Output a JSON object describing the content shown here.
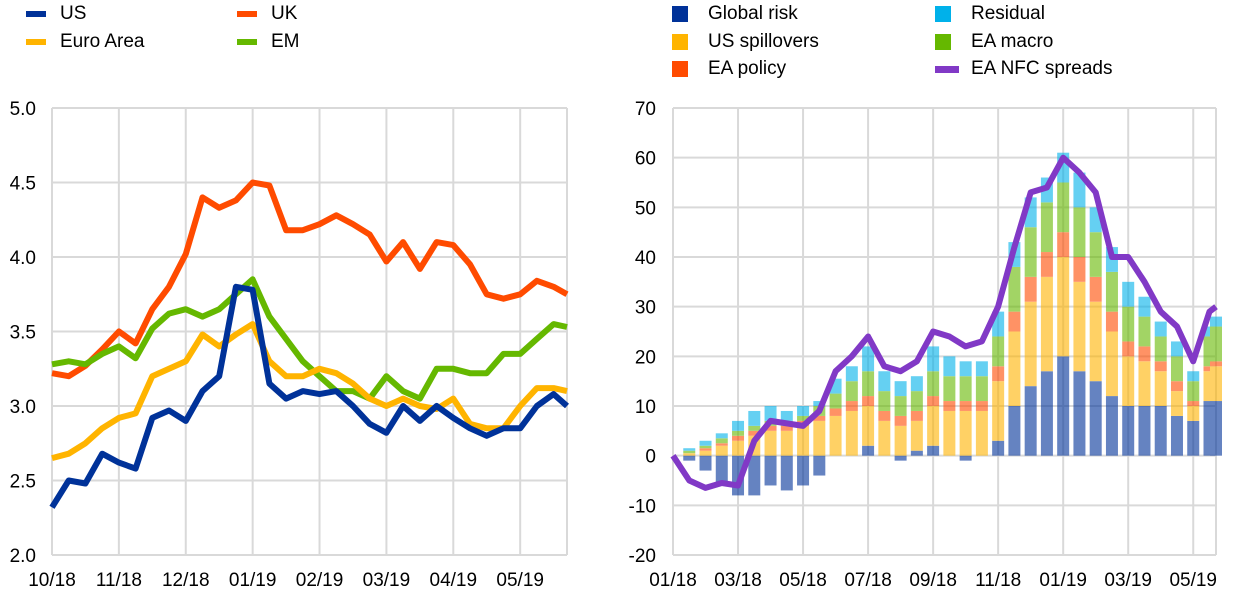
{
  "chart_data": [
    {
      "type": "line",
      "title": "",
      "xlabel": "",
      "ylabel": "",
      "ylim": [
        2.0,
        5.0
      ],
      "yticks": [
        "2.0",
        "2.5",
        "3.0",
        "3.5",
        "4.0",
        "4.5",
        "5.0"
      ],
      "xticks": [
        "10/18",
        "11/18",
        "12/18",
        "01/19",
        "02/19",
        "03/19",
        "04/19",
        "05/19"
      ],
      "xlim_months": [
        0,
        7.7
      ],
      "grid": true,
      "legend_placement": "top",
      "x": [
        0,
        0.25,
        0.5,
        0.75,
        1,
        1.25,
        1.5,
        1.75,
        2,
        2.25,
        2.5,
        2.75,
        3,
        3.25,
        3.5,
        3.75,
        4,
        4.25,
        4.5,
        4.75,
        5,
        5.25,
        5.5,
        5.75,
        6,
        6.25,
        6.5,
        6.75,
        7,
        7.25,
        7.5,
        7.7
      ],
      "series": [
        {
          "name": "US",
          "color": "#003299",
          "values": [
            2.32,
            2.5,
            2.48,
            2.68,
            2.62,
            2.58,
            2.92,
            2.97,
            2.9,
            3.1,
            3.2,
            3.8,
            3.78,
            3.15,
            3.05,
            3.1,
            3.08,
            3.1,
            3.0,
            2.88,
            2.82,
            3.0,
            2.9,
            3.0,
            2.92,
            2.85,
            2.8,
            2.85,
            2.85,
            3.0,
            3.08,
            3.0
          ]
        },
        {
          "name": "UK",
          "color": "#FF4B00",
          "values": [
            3.22,
            3.2,
            3.27,
            3.38,
            3.5,
            3.42,
            3.65,
            3.8,
            4.02,
            4.4,
            4.33,
            4.38,
            4.5,
            4.48,
            4.18,
            4.18,
            4.22,
            4.28,
            4.22,
            4.15,
            3.97,
            4.1,
            3.92,
            4.1,
            4.08,
            3.95,
            3.75,
            3.72,
            3.75,
            3.84,
            3.8,
            3.75
          ]
        },
        {
          "name": "Euro Area",
          "color": "#FFB400",
          "values": [
            2.65,
            2.68,
            2.75,
            2.85,
            2.92,
            2.95,
            3.2,
            3.25,
            3.3,
            3.48,
            3.4,
            3.48,
            3.55,
            3.3,
            3.2,
            3.2,
            3.25,
            3.22,
            3.15,
            3.05,
            3.0,
            3.05,
            3.0,
            2.98,
            3.05,
            2.88,
            2.85,
            2.85,
            3.0,
            3.12,
            3.12,
            3.1
          ]
        },
        {
          "name": "EM",
          "color": "#65B800",
          "values": [
            3.28,
            3.3,
            3.28,
            3.35,
            3.4,
            3.32,
            3.52,
            3.62,
            3.65,
            3.6,
            3.65,
            3.75,
            3.85,
            3.6,
            3.45,
            3.3,
            3.2,
            3.1,
            3.1,
            3.05,
            3.2,
            3.1,
            3.05,
            3.25,
            3.25,
            3.22,
            3.22,
            3.35,
            3.35,
            3.45,
            3.55,
            3.53
          ]
        }
      ]
    },
    {
      "type": "bar",
      "stacked": true,
      "title": "",
      "xlabel": "",
      "ylabel": "",
      "ylim": [
        -20,
        70
      ],
      "yticks": [
        "-20",
        "-10",
        "0",
        "10",
        "20",
        "30",
        "40",
        "50",
        "60",
        "70"
      ],
      "xticks": [
        "01/18",
        "03/18",
        "05/18",
        "07/18",
        "09/18",
        "11/18",
        "01/19",
        "03/19",
        "05/19"
      ],
      "xlim_months": [
        0,
        16.7
      ],
      "grid": true,
      "legend_placement": "top",
      "x": [
        0,
        0.5,
        1,
        1.5,
        2,
        2.5,
        3,
        3.5,
        4,
        4.5,
        5,
        5.5,
        6,
        6.5,
        7,
        7.5,
        8,
        8.5,
        9,
        9.5,
        10,
        10.5,
        11,
        11.5,
        12,
        12.5,
        13,
        13.5,
        14,
        14.5,
        15,
        15.5,
        16,
        16.5,
        16.7
      ],
      "series": [
        {
          "name": "Global risk",
          "color": "#003299",
          "values": [
            0,
            -1,
            -3,
            -6,
            -8,
            -8,
            -6,
            -7,
            -6,
            -4,
            0,
            0,
            2,
            0,
            -1,
            1,
            2,
            0,
            -1,
            0,
            3,
            10,
            14,
            17,
            20,
            17,
            15,
            12,
            10,
            10,
            10,
            8,
            7,
            11,
            11
          ]
        },
        {
          "name": "US spillovers",
          "color": "#FFB400",
          "values": [
            0,
            0.5,
            1,
            2,
            3,
            4,
            5,
            5,
            6,
            7,
            8,
            9,
            8,
            7,
            6,
            6,
            8,
            9,
            9,
            9,
            12,
            15,
            17,
            19,
            20,
            18,
            16,
            13,
            10,
            9,
            7,
            5,
            3,
            6,
            7
          ]
        },
        {
          "name": "EA policy",
          "color": "#FF4B00",
          "values": [
            0,
            0,
            0.5,
            0.5,
            1,
            1,
            1,
            1,
            1,
            1,
            1.5,
            2,
            2,
            2,
            2,
            2,
            2,
            2,
            2,
            2,
            3,
            4,
            5,
            5,
            5,
            5,
            5,
            4,
            3,
            3,
            2,
            2,
            1,
            1,
            1
          ]
        },
        {
          "name": "EA macro",
          "color": "#65B800",
          "values": [
            0,
            0.5,
            0.5,
            1,
            1,
            1,
            1,
            1,
            1,
            2,
            3,
            4,
            5,
            4,
            4,
            4,
            5,
            5,
            5,
            5,
            6,
            9,
            10,
            10,
            10,
            10,
            9,
            8,
            7,
            6,
            5,
            5,
            4,
            6,
            7
          ]
        },
        {
          "name": "Residual",
          "color": "#00B1EA",
          "values": [
            0,
            0.5,
            1,
            1,
            2,
            3,
            3,
            2,
            2,
            1,
            3,
            3,
            5,
            4,
            3,
            3,
            5,
            4,
            3,
            3,
            5,
            5,
            6,
            5,
            6,
            7,
            5,
            5,
            5,
            4,
            3,
            3,
            2,
            2,
            2
          ]
        }
      ],
      "line": {
        "name": "EA NFC spreads",
        "color": "#8139C6",
        "values": [
          0,
          -5,
          -6.5,
          -5.5,
          -6,
          3,
          7,
          6.5,
          6,
          9,
          17,
          20,
          24,
          18,
          17,
          19,
          25,
          24,
          22,
          23,
          30,
          42,
          53,
          54,
          60,
          57,
          53,
          40,
          40,
          35,
          29,
          26,
          19,
          29,
          30
        ]
      }
    }
  ],
  "legend_left": [
    {
      "label": "US",
      "color": "#003299"
    },
    {
      "label": "UK",
      "color": "#FF4B00"
    },
    {
      "label": "Euro Area",
      "color": "#FFB400"
    },
    {
      "label": "EM",
      "color": "#65B800"
    }
  ],
  "legend_right": [
    {
      "label": "Global risk",
      "color": "#003299"
    },
    {
      "label": "Residual",
      "color": "#00B1EA"
    },
    {
      "label": "US spillovers",
      "color": "#FFB400"
    },
    {
      "label": "EA macro",
      "color": "#65B800"
    },
    {
      "label": "EA policy",
      "color": "#FF4B00"
    },
    {
      "label": "EA NFC spreads",
      "color": "#8139C6"
    }
  ]
}
